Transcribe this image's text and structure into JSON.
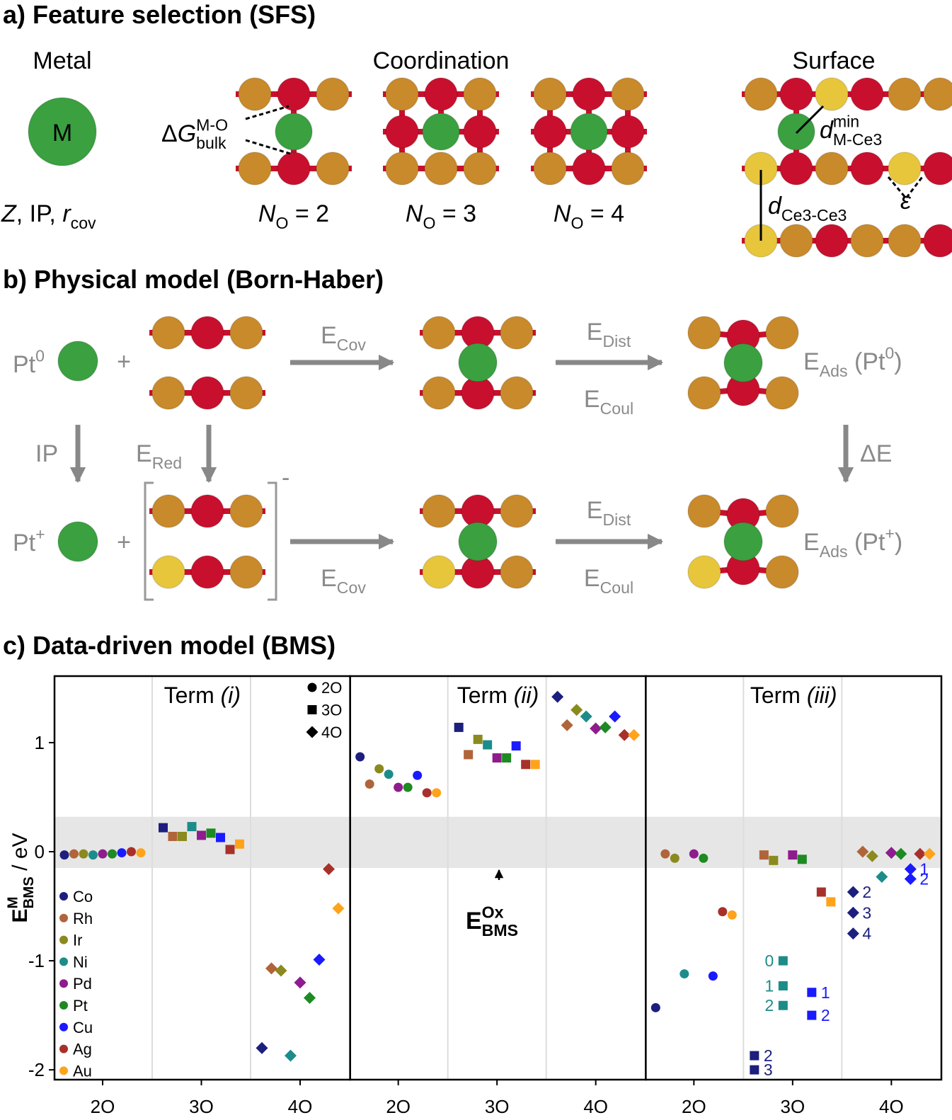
{
  "panel_a": {
    "title": [
      {
        "text": "a) Feature selection (SFS)"
      }
    ],
    "metal_heading": [
      {
        "text": "Metal"
      }
    ],
    "metal_atom": [
      {
        "text": "M"
      }
    ],
    "metal_features": [
      {
        "text": "Z",
        "style": "i"
      },
      {
        "text": ", IP, "
      },
      {
        "text": "r",
        "style": "i"
      },
      {
        "text": "cov",
        "style": "sub"
      }
    ],
    "coordination_heading": [
      {
        "text": "Coordination"
      }
    ],
    "bulk_energy": [
      {
        "text": "Δ"
      },
      {
        "text": "G",
        "style": "i"
      },
      {
        "text": "M-O",
        "style": "sup"
      },
      {
        "text": "bulk",
        "style": "sub",
        "stack": true
      }
    ],
    "coordination_labels": [
      [
        {
          "text": "N",
          "style": "i"
        },
        {
          "text": "O",
          "style": "sub"
        },
        {
          "text": " = 2"
        }
      ],
      [
        {
          "text": "N",
          "style": "i"
        },
        {
          "text": "O",
          "style": "sub"
        },
        {
          "text": " = 3"
        }
      ],
      [
        {
          "text": "N",
          "style": "i"
        },
        {
          "text": "O",
          "style": "sub"
        },
        {
          "text": " = 4"
        }
      ]
    ],
    "surface_heading": [
      {
        "text": "Surface"
      }
    ],
    "metal_ce_distance": [
      {
        "text": "d",
        "style": "i"
      },
      {
        "text": "min",
        "style": "sup"
      },
      {
        "text": "M-Ce3",
        "style": "sub",
        "stack": true
      }
    ],
    "ce_ce_distance": [
      {
        "text": "d",
        "style": "i"
      },
      {
        "text": "Ce3-Ce3",
        "style": "sub"
      }
    ],
    "angle": [
      {
        "text": "ε",
        "style": "i"
      }
    ]
  },
  "panel_b": {
    "title": [
      {
        "text": "b) Physical model (Born-Haber)"
      }
    ],
    "pt0": [
      {
        "text": "Pt"
      },
      {
        "text": "0",
        "style": "sup"
      }
    ],
    "plus_top": [
      {
        "text": "+"
      }
    ],
    "e_cov_top": [
      {
        "text": "E"
      },
      {
        "text": "Cov",
        "style": "sub"
      }
    ],
    "e_dist_top": [
      {
        "text": "E"
      },
      {
        "text": "Dist",
        "style": "sub"
      }
    ],
    "e_coul_top": [
      {
        "text": "E"
      },
      {
        "text": "Coul",
        "style": "sub"
      }
    ],
    "e_ads_pt0": [
      {
        "text": "E"
      },
      {
        "text": "Ads",
        "style": "sub"
      },
      {
        "text": " (Pt"
      },
      {
        "text": "0",
        "style": "sup"
      },
      {
        "text": ")"
      }
    ],
    "ip": [
      {
        "text": "IP"
      }
    ],
    "e_red": [
      {
        "text": "E"
      },
      {
        "text": "Red",
        "style": "sub"
      }
    ],
    "delta_e": [
      {
        "text": "ΔE"
      }
    ],
    "charge": [
      {
        "text": "-"
      }
    ],
    "pt_plus": [
      {
        "text": "Pt"
      },
      {
        "text": "+",
        "style": "sup"
      }
    ],
    "plus_bottom": [
      {
        "text": "+"
      }
    ],
    "e_cov_bottom": [
      {
        "text": "E"
      },
      {
        "text": "Cov",
        "style": "sub"
      }
    ],
    "e_dist_bottom": [
      {
        "text": "E"
      },
      {
        "text": "Dist",
        "style": "sub"
      }
    ],
    "e_coul_bottom": [
      {
        "text": "E"
      },
      {
        "text": "Coul",
        "style": "sub"
      }
    ],
    "e_ads_ptplus": [
      {
        "text": "E"
      },
      {
        "text": "Ads",
        "style": "sub"
      },
      {
        "text": " (Pt"
      },
      {
        "text": "+",
        "style": "sup"
      },
      {
        "text": ")"
      }
    ]
  },
  "chart_data": {
    "type": "scatter",
    "title": [
      {
        "text": "c) Data-driven model (BMS)"
      }
    ],
    "ylabel": [
      {
        "text": "E",
        "bold": true
      },
      {
        "text": "M",
        "style": "sup",
        "bold": true
      },
      {
        "text": "BMS",
        "style": "sub",
        "stack": true,
        "bold": true
      },
      {
        "text": " / eV"
      }
    ],
    "ylim": [
      -2.09,
      1.61
    ],
    "yticks": [
      -2,
      -1,
      0,
      1
    ],
    "groups": [
      "2O",
      "3O",
      "4O"
    ],
    "markers": [
      "circle",
      "square",
      "diamond"
    ],
    "band": [
      -0.15,
      0.32
    ],
    "band_label": [
      {
        "text": "E",
        "bold": true
      },
      {
        "text": "Ox",
        "style": "sup",
        "bold": true
      },
      {
        "text": "BMS",
        "style": "sub",
        "stack": true,
        "bold": true
      }
    ],
    "metals": [
      {
        "name": "Co",
        "color": "#1c1f7d"
      },
      {
        "name": "Rh",
        "color": "#b0643a"
      },
      {
        "name": "Ir",
        "color": "#8a8a1e"
      },
      {
        "name": "Ni",
        "color": "#1c8c8a"
      },
      {
        "name": "Pd",
        "color": "#8e1c8e"
      },
      {
        "name": "Pt",
        "color": "#1e8a22"
      },
      {
        "name": "Cu",
        "color": "#1a1aff"
      },
      {
        "name": "Ag",
        "color": "#a8302a"
      },
      {
        "name": "Au",
        "color": "#ffa31a"
      }
    ],
    "terms": [
      {
        "title": [
          {
            "text": "Term "
          },
          {
            "text": "(i)",
            "style": "i"
          }
        ],
        "values": [
          [
            [
              -0.03
            ],
            [
              0.22
            ],
            [
              -1.8
            ]
          ],
          [
            [
              -0.02
            ],
            [
              0.14
            ],
            [
              -1.07
            ]
          ],
          [
            [
              -0.02
            ],
            [
              0.14
            ],
            [
              -1.09
            ]
          ],
          [
            [
              -0.03
            ],
            [
              0.23
            ],
            [
              -1.87
            ]
          ],
          [
            [
              -0.02
            ],
            [
              0.15
            ],
            [
              -1.2
            ]
          ],
          [
            [
              -0.02
            ],
            [
              0.17
            ],
            [
              -1.34
            ]
          ],
          [
            [
              -0.01
            ],
            [
              0.13
            ],
            [
              -0.99
            ]
          ],
          [
            [
              0.0
            ],
            [
              0.02
            ],
            [
              -0.16
            ]
          ],
          [
            [
              -0.01
            ],
            [
              0.07
            ],
            [
              -0.52
            ]
          ]
        ]
      },
      {
        "title": [
          {
            "text": "Term "
          },
          {
            "text": "(ii)",
            "style": "i"
          }
        ],
        "values": [
          [
            [
              0.87
            ],
            [
              1.14
            ],
            [
              1.42
            ]
          ],
          [
            [
              0.62
            ],
            [
              0.89
            ],
            [
              1.16
            ]
          ],
          [
            [
              0.76
            ],
            [
              1.03
            ],
            [
              1.3
            ]
          ],
          [
            [
              0.71
            ],
            [
              0.98
            ],
            [
              1.24
            ]
          ],
          [
            [
              0.59
            ],
            [
              0.86
            ],
            [
              1.13
            ]
          ],
          [
            [
              0.59
            ],
            [
              0.86
            ],
            [
              1.14
            ]
          ],
          [
            [
              0.7
            ],
            [
              0.97
            ],
            [
              1.24
            ]
          ],
          [
            [
              0.54
            ],
            [
              0.8
            ],
            [
              1.07
            ]
          ],
          [
            [
              0.54
            ],
            [
              0.8
            ],
            [
              1.07
            ]
          ]
        ]
      },
      {
        "title": [
          {
            "text": "Term "
          },
          {
            "text": "(iii)",
            "style": "i"
          }
        ],
        "values": [
          [
            [
              -1.43
            ],
            [
              {
                "value": -1.87,
                "label": "2"
              },
              {
                "value": -2.0,
                "label": "3"
              }
            ],
            [
              {
                "value": -0.37,
                "label": "2"
              },
              {
                "value": -0.56,
                "label": "3"
              },
              {
                "value": -0.75,
                "label": "4"
              }
            ]
          ],
          [
            [
              -0.02
            ],
            [
              -0.03
            ],
            [
              0.0
            ]
          ],
          [
            [
              -0.06
            ],
            [
              -0.08
            ],
            [
              -0.04
            ]
          ],
          [
            [
              -1.12
            ],
            [
              {
                "value": -1.0,
                "label": "0"
              },
              {
                "value": -1.23,
                "label": "1"
              },
              {
                "value": -1.41,
                "label": "2"
              }
            ],
            [
              -0.23
            ]
          ],
          [
            [
              -0.02
            ],
            [
              -0.03
            ],
            [
              -0.01
            ]
          ],
          [
            [
              -0.06
            ],
            [
              -0.07
            ],
            [
              -0.02
            ]
          ],
          [
            [
              -1.14
            ],
            [
              {
                "value": -1.29,
                "label": "1"
              },
              {
                "value": -1.5,
                "label": "2"
              }
            ],
            [
              {
                "value": -0.16,
                "label": "1"
              },
              {
                "value": -0.25,
                "label": "2"
              }
            ]
          ],
          [
            [
              -0.55
            ],
            [
              -0.37
            ],
            [
              -0.02
            ]
          ],
          [
            [
              -0.58
            ],
            [
              -0.46
            ],
            [
              -0.02
            ]
          ]
        ]
      }
    ]
  }
}
